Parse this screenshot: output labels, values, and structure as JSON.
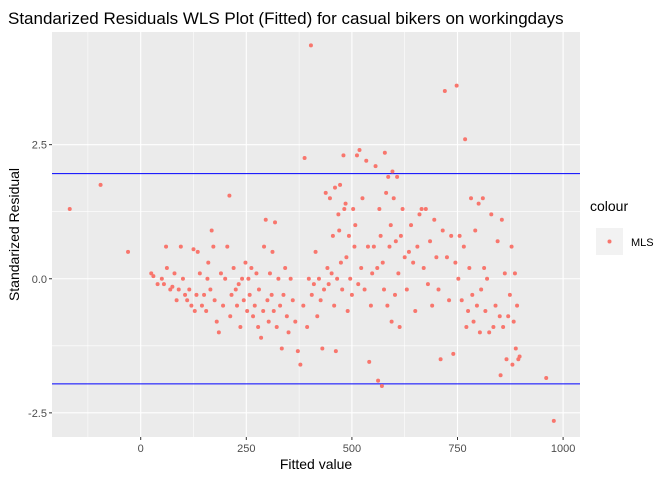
{
  "chart_data": {
    "type": "scatter",
    "title": "Standarized Residuals WLS Plot (Fitted) for casual bikers on workingdays",
    "xlabel": "Fitted value",
    "ylabel": "Standarized Residual",
    "xlim": [
      -210,
      1040
    ],
    "ylim": [
      -2.95,
      4.6
    ],
    "xticks": [
      0,
      250,
      500,
      750,
      1000
    ],
    "yticks": [
      -2.5,
      0.0,
      2.5
    ],
    "ytick_labels": [
      "-2.5",
      "0.0",
      "2.5"
    ],
    "grid": true,
    "reference_lines": [
      1.96,
      -1.96
    ],
    "reference_line_color": "#0000ff",
    "legend": {
      "title": "colour",
      "placement": "right",
      "entries": [
        "MLS"
      ]
    },
    "series": [
      {
        "name": "MLS",
        "color": "#f8766d",
        "points": [
          [
            -168,
            1.3
          ],
          [
            -95,
            1.75
          ],
          [
            -30,
            0.5
          ],
          [
            25,
            0.1
          ],
          [
            30,
            0.05
          ],
          [
            40,
            -0.1
          ],
          [
            50,
            0.0
          ],
          [
            55,
            -0.1
          ],
          [
            60,
            0.6
          ],
          [
            62,
            0.2
          ],
          [
            70,
            -0.2
          ],
          [
            75,
            -0.15
          ],
          [
            80,
            0.1
          ],
          [
            85,
            -0.4
          ],
          [
            90,
            -0.2
          ],
          [
            95,
            0.6
          ],
          [
            100,
            0.0
          ],
          [
            105,
            -0.3
          ],
          [
            110,
            -0.4
          ],
          [
            115,
            -0.2
          ],
          [
            120,
            -0.5
          ],
          [
            125,
            0.55
          ],
          [
            128,
            -0.6
          ],
          [
            132,
            -0.3
          ],
          [
            135,
            0.5
          ],
          [
            140,
            0.1
          ],
          [
            145,
            -0.5
          ],
          [
            150,
            -0.3
          ],
          [
            155,
            -0.6
          ],
          [
            158,
            0.0
          ],
          [
            160,
            0.3
          ],
          [
            165,
            -0.2
          ],
          [
            168,
            0.9
          ],
          [
            172,
            0.6
          ],
          [
            175,
            -0.4
          ],
          [
            180,
            -0.8
          ],
          [
            185,
            -1.0
          ],
          [
            190,
            0.1
          ],
          [
            195,
            -0.5
          ],
          [
            200,
            0.0
          ],
          [
            205,
            0.6
          ],
          [
            210,
            1.55
          ],
          [
            212,
            -0.7
          ],
          [
            215,
            -0.3
          ],
          [
            220,
            0.2
          ],
          [
            225,
            -0.2
          ],
          [
            228,
            -0.5
          ],
          [
            232,
            -0.1
          ],
          [
            236,
            -0.9
          ],
          [
            240,
            0.0
          ],
          [
            244,
            -0.4
          ],
          [
            248,
            0.3
          ],
          [
            252,
            -0.6
          ],
          [
            255,
            0.0
          ],
          [
            258,
            -0.3
          ],
          [
            262,
            0.2
          ],
          [
            266,
            -0.7
          ],
          [
            270,
            -0.5
          ],
          [
            274,
            0.1
          ],
          [
            278,
            -0.9
          ],
          [
            280,
            -0.2
          ],
          [
            285,
            -1.1
          ],
          [
            290,
            -0.6
          ],
          [
            292,
            0.6
          ],
          [
            296,
            1.1
          ],
          [
            300,
            -0.4
          ],
          [
            303,
            -0.8
          ],
          [
            306,
            0.1
          ],
          [
            310,
            -0.3
          ],
          [
            312,
            0.5
          ],
          [
            315,
            -0.6
          ],
          [
            318,
            1.05
          ],
          [
            322,
            -0.9
          ],
          [
            326,
            0.0
          ],
          [
            330,
            -0.5
          ],
          [
            334,
            -1.3
          ],
          [
            338,
            -0.3
          ],
          [
            342,
            0.2
          ],
          [
            346,
            -0.7
          ],
          [
            350,
            -1.0
          ],
          [
            355,
            0.0
          ],
          [
            360,
            -0.4
          ],
          [
            366,
            -0.8
          ],
          [
            372,
            -1.35
          ],
          [
            378,
            -1.6
          ],
          [
            385,
            -0.5
          ],
          [
            388,
            2.25
          ],
          [
            394,
            -0.9
          ],
          [
            398,
            0.0
          ],
          [
            403,
            4.35
          ],
          [
            405,
            -0.3
          ],
          [
            410,
            -0.1
          ],
          [
            414,
            0.5
          ],
          [
            418,
            -0.7
          ],
          [
            422,
            0.0
          ],
          [
            426,
            -0.4
          ],
          [
            430,
            -1.3
          ],
          [
            434,
            -0.2
          ],
          [
            438,
            1.6
          ],
          [
            442,
            0.2
          ],
          [
            445,
            -0.1
          ],
          [
            448,
            1.5
          ],
          [
            452,
            0.1
          ],
          [
            455,
            0.8
          ],
          [
            458,
            -0.5
          ],
          [
            460,
            1.7
          ],
          [
            462,
            -1.35
          ],
          [
            465,
            0.0
          ],
          [
            468,
            1.2
          ],
          [
            470,
            0.9
          ],
          [
            472,
            1.75
          ],
          [
            474,
            0.3
          ],
          [
            477,
            -0.2
          ],
          [
            480,
            2.3
          ],
          [
            482,
            1.3
          ],
          [
            485,
            1.4
          ],
          [
            487,
            0.4
          ],
          [
            490,
            -0.6
          ],
          [
            493,
            0.8
          ],
          [
            496,
            0.0
          ],
          [
            500,
            -0.3
          ],
          [
            503,
            1.3
          ],
          [
            506,
            0.6
          ],
          [
            508,
            1.0
          ],
          [
            512,
            2.3
          ],
          [
            515,
            -0.1
          ],
          [
            518,
            2.4
          ],
          [
            522,
            0.2
          ],
          [
            525,
            1.5
          ],
          [
            530,
            -0.2
          ],
          [
            534,
            2.2
          ],
          [
            538,
            0.6
          ],
          [
            541,
            -1.55
          ],
          [
            545,
            -0.5
          ],
          [
            548,
            0.1
          ],
          [
            552,
            0.6
          ],
          [
            556,
            2.1
          ],
          [
            560,
            0.2
          ],
          [
            562,
            -1.9
          ],
          [
            565,
            1.3
          ],
          [
            568,
            0.8
          ],
          [
            571,
            -2.0
          ],
          [
            573,
            0.3
          ],
          [
            576,
            -0.2
          ],
          [
            578,
            2.35
          ],
          [
            581,
            1.6
          ],
          [
            584,
            -0.5
          ],
          [
            586,
            1.9
          ],
          [
            589,
            0.6
          ],
          [
            592,
            1.0
          ],
          [
            594,
            -0.8
          ],
          [
            596,
            2.0
          ],
          [
            599,
            1.5
          ],
          [
            602,
            -0.3
          ],
          [
            604,
            0.7
          ],
          [
            607,
            1.9
          ],
          [
            610,
            0.1
          ],
          [
            613,
            -0.9
          ],
          [
            616,
            0.8
          ],
          [
            620,
            1.3
          ],
          [
            625,
            0.4
          ],
          [
            630,
            -0.2
          ],
          [
            635,
            0.5
          ],
          [
            640,
            1.0
          ],
          [
            645,
            0.3
          ],
          [
            650,
            -0.6
          ],
          [
            655,
            0.6
          ],
          [
            660,
            1.2
          ],
          [
            665,
            1.3
          ],
          [
            670,
            0.2
          ],
          [
            675,
            1.3
          ],
          [
            680,
            -0.1
          ],
          [
            685,
            0.7
          ],
          [
            690,
            -0.5
          ],
          [
            695,
            1.1
          ],
          [
            700,
            0.4
          ],
          [
            705,
            -0.2
          ],
          [
            710,
            -1.5
          ],
          [
            715,
            0.9
          ],
          [
            720,
            3.5
          ],
          [
            725,
            0.4
          ],
          [
            730,
            -0.4
          ],
          [
            735,
            0.8
          ],
          [
            740,
            -1.4
          ],
          [
            745,
            0.3
          ],
          [
            748,
            3.6
          ],
          [
            752,
            0.0
          ],
          [
            755,
            0.8
          ],
          [
            760,
            -0.4
          ],
          [
            765,
            0.6
          ],
          [
            768,
            2.6
          ],
          [
            771,
            -0.9
          ],
          [
            775,
            -0.6
          ],
          [
            778,
            0.2
          ],
          [
            782,
            1.5
          ],
          [
            785,
            -0.3
          ],
          [
            788,
            -0.8
          ],
          [
            792,
            0.9
          ],
          [
            796,
            -0.5
          ],
          [
            800,
            1.4
          ],
          [
            803,
            -1.0
          ],
          [
            806,
            -0.2
          ],
          [
            810,
            1.5
          ],
          [
            813,
            0.2
          ],
          [
            816,
            -0.6
          ],
          [
            820,
            0.0
          ],
          [
            825,
            -1.0
          ],
          [
            830,
            1.2
          ],
          [
            835,
            -0.9
          ],
          [
            840,
            -0.5
          ],
          [
            845,
            0.7
          ],
          [
            850,
            -0.7
          ],
          [
            852,
            -1.8
          ],
          [
            855,
            1.1
          ],
          [
            858,
            -0.9
          ],
          [
            862,
            0.1
          ],
          [
            866,
            -1.5
          ],
          [
            870,
            -0.7
          ],
          [
            874,
            -0.3
          ],
          [
            878,
            0.6
          ],
          [
            880,
            -1.6
          ],
          [
            883,
            -0.8
          ],
          [
            886,
            0.1
          ],
          [
            888,
            -1.3
          ],
          [
            891,
            -0.5
          ],
          [
            894,
            -1.5
          ],
          [
            897,
            -1.45
          ],
          [
            960,
            -1.85
          ],
          [
            978,
            -2.65
          ]
        ]
      }
    ]
  }
}
